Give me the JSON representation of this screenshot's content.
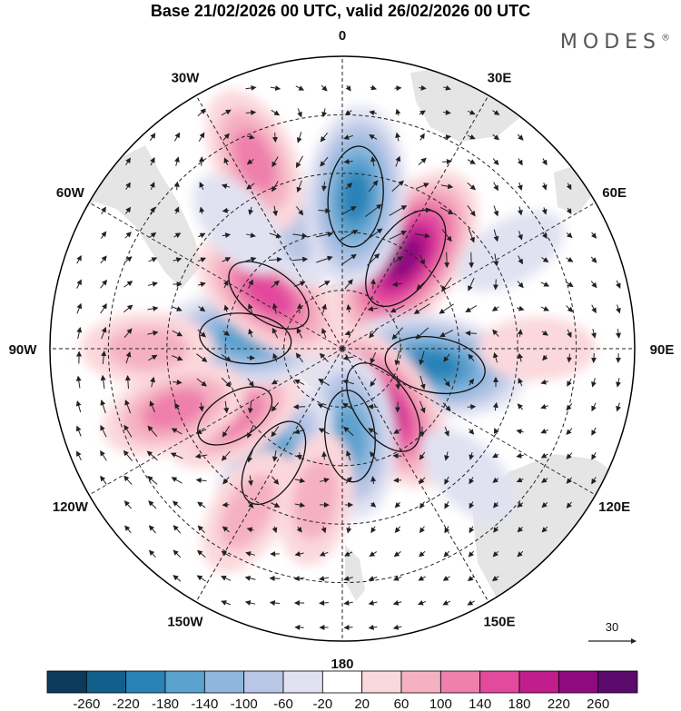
{
  "title": "Base 21/02/2026 00 UTC, valid 26/02/2026 00 UTC",
  "brand": "MODES",
  "brand_mark": "®",
  "chart_data": {
    "type": "heatmap",
    "projection": "south polar stereographic",
    "variable": "anomaly with wind vectors",
    "longitude_labels": [
      "0",
      "30E",
      "60E",
      "90E",
      "120E",
      "150E",
      "180",
      "150W",
      "120W",
      "90W",
      "60W",
      "30W"
    ],
    "colorbar": {
      "ticks": [
        "-260",
        "-220",
        "-180",
        "-140",
        "-100",
        "-60",
        "-20",
        "20",
        "60",
        "100",
        "140",
        "180",
        "220",
        "260"
      ],
      "colors": [
        "#0b3a5a",
        "#135f8c",
        "#2a83b7",
        "#5ba2cf",
        "#8fb7dd",
        "#b9c6e6",
        "#e0e2f2",
        "#ffffff",
        "#fbd8dc",
        "#f5b1c2",
        "#ee80ab",
        "#e24a9d",
        "#c21d8d",
        "#8e0b7e",
        "#5b0a6b"
      ]
    },
    "vector_reference": {
      "label": "30",
      "value": 30
    },
    "anomalies": [
      {
        "lon": 35,
        "colat": 34,
        "value": 210
      },
      {
        "lon": 100,
        "colat": 29,
        "value": -180
      },
      {
        "lon": 145,
        "colat": 22,
        "value": 165
      },
      {
        "lon": 175,
        "colat": 27,
        "value": -150
      },
      {
        "lon": 211,
        "colat": 41,
        "value": -150
      },
      {
        "lon": 238,
        "colat": 39,
        "value": 110
      },
      {
        "lon": 276,
        "colat": 30,
        "value": -150
      },
      {
        "lon": 306,
        "colat": 28,
        "value": 130
      },
      {
        "lon": 337,
        "colat": 42,
        "value": -80
      },
      {
        "lon": 5,
        "colat": 47,
        "value": -165
      },
      {
        "lon": 335,
        "colat": 64,
        "value": 90
      },
      {
        "lon": 270,
        "colat": 60,
        "value": 80
      },
      {
        "lon": 250,
        "colat": 55,
        "value": 90
      },
      {
        "lon": 210,
        "colat": 58,
        "value": 80
      },
      {
        "lon": 60,
        "colat": 60,
        "value": -40
      },
      {
        "lon": 90,
        "colat": 60,
        "value": 40
      },
      {
        "lon": 135,
        "colat": 55,
        "value": -30
      },
      {
        "lon": 320,
        "colat": 50,
        "value": -40
      },
      {
        "lon": 190,
        "colat": 47,
        "value": 60
      }
    ]
  }
}
